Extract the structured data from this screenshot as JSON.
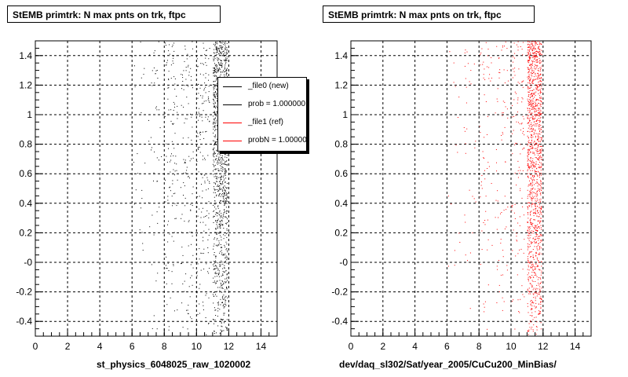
{
  "charts": [
    {
      "title": "StEMB primtrk: N max pnts on trk, ftpc",
      "xlabel": "st_physics_6048025_raw_1020002",
      "color": "#000000",
      "legend": [
        {
          "label": "_file0 (new)",
          "color": "#000000"
        },
        {
          "label": "prob = 1.000000",
          "color": "#000000"
        },
        {
          "label": "_file1 (ref)",
          "color": "#ff0000"
        },
        {
          "label": "probN = 1.000000",
          "color": "#ff0000"
        }
      ]
    },
    {
      "title": "StEMB primtrk: N max pnts on trk, ftpc",
      "xlabel": "dev/daq_sl302/Sat/year_2005/CuCu200_MinBias/",
      "color": "#ff0000"
    }
  ],
  "chart_data": [
    {
      "type": "scatter",
      "title": "StEMB primtrk: N max pnts on trk, ftpc",
      "xlabel": "st_physics_6048025_raw_1020002",
      "xlim": [
        0,
        15
      ],
      "ylim": [
        -0.5,
        1.5
      ],
      "xticks": [
        "0",
        "2",
        "4",
        "6",
        "8",
        "10",
        "12",
        "14"
      ],
      "yticks": [
        "-0.4",
        "-0.2",
        "-0",
        "0.2",
        "0.4",
        "0.6",
        "0.8",
        "1",
        "1.2",
        "1.4"
      ],
      "grid": true,
      "legend_position": "top-right",
      "series": [
        {
          "name": "_file0 (new)",
          "color": "#000000",
          "bands": [
            {
              "x": [
                6.0,
                6.8
              ],
              "points": 20
            },
            {
              "x": [
                7.0,
                7.8
              ],
              "points": 45
            },
            {
              "x": [
                8.0,
                8.8
              ],
              "points": 110
            },
            {
              "x": [
                9.0,
                9.8
              ],
              "points": 110
            },
            {
              "x": [
                10.0,
                10.8
              ],
              "points": 160
            },
            {
              "x": [
                11.0,
                11.9
              ],
              "points": 1100
            }
          ]
        }
      ]
    },
    {
      "type": "scatter",
      "title": "StEMB primtrk: N max pnts on trk, ftpc",
      "xlabel": "dev/daq_sl302/Sat/year_2005/CuCu200_MinBias/",
      "xlim": [
        0,
        15
      ],
      "ylim": [
        -0.5,
        1.5
      ],
      "xticks": [
        "0",
        "2",
        "4",
        "6",
        "8",
        "10",
        "12",
        "14"
      ],
      "yticks": [
        "-0.4",
        "-0.2",
        "-0",
        "0.2",
        "0.4",
        "0.6",
        "0.8",
        "1",
        "1.2",
        "1.4"
      ],
      "grid": true,
      "series": [
        {
          "name": "_file1 (ref)",
          "color": "#ff0000",
          "bands": [
            {
              "x": [
                6.0,
                6.8
              ],
              "points": 15
            },
            {
              "x": [
                7.0,
                7.8
              ],
              "points": 30
            },
            {
              "x": [
                8.0,
                8.8
              ],
              "points": 60
            },
            {
              "x": [
                9.0,
                9.8
              ],
              "points": 70
            },
            {
              "x": [
                10.0,
                10.8
              ],
              "points": 110
            },
            {
              "x": [
                11.0,
                11.9
              ],
              "points": 1300
            }
          ]
        }
      ]
    }
  ]
}
